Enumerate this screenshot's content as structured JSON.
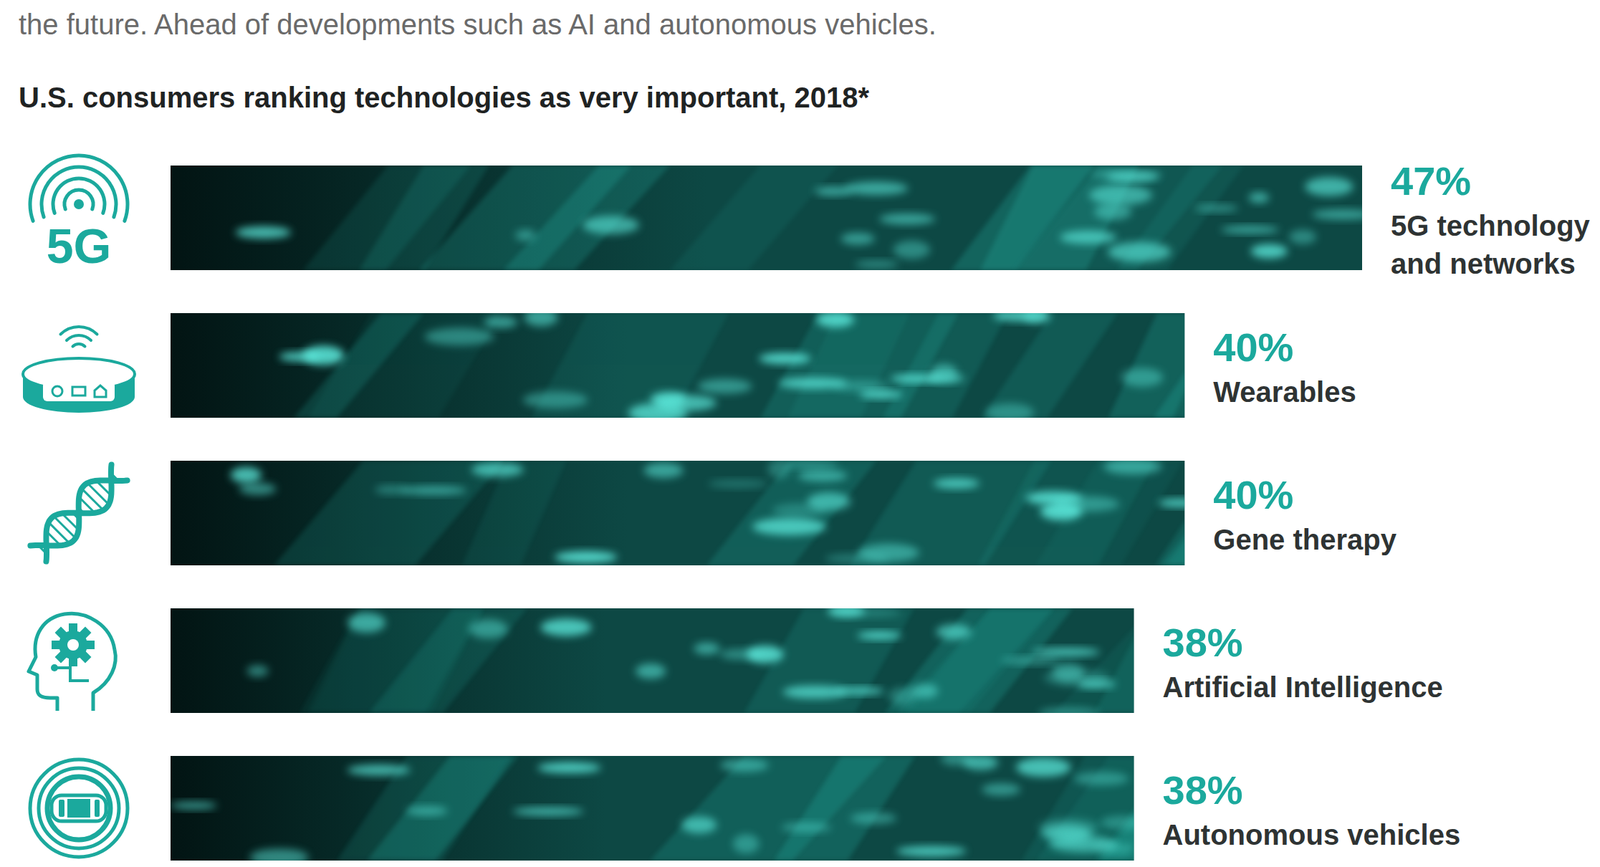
{
  "chart_data": {
    "type": "bar",
    "orientation": "horizontal",
    "subtitle": "the future. Ahead of developments such as AI and autonomous vehicles.",
    "title": "U.S. consumers ranking technologies as very important, 2018*",
    "categories": [
      "5G technology and networks",
      "Wearables",
      "Gene therapy",
      "Artificial Intelligence",
      "Autonomous vehicles"
    ],
    "values": [
      47,
      40,
      40,
      38,
      38
    ],
    "value_labels": [
      "47%",
      "40%",
      "40%",
      "38%",
      "38%"
    ],
    "data_labels": true,
    "color": "#0d4844",
    "xlim": [
      0,
      47
    ],
    "tick_labels": false,
    "grid": false,
    "annotations": [
      "5G"
    ]
  }
}
